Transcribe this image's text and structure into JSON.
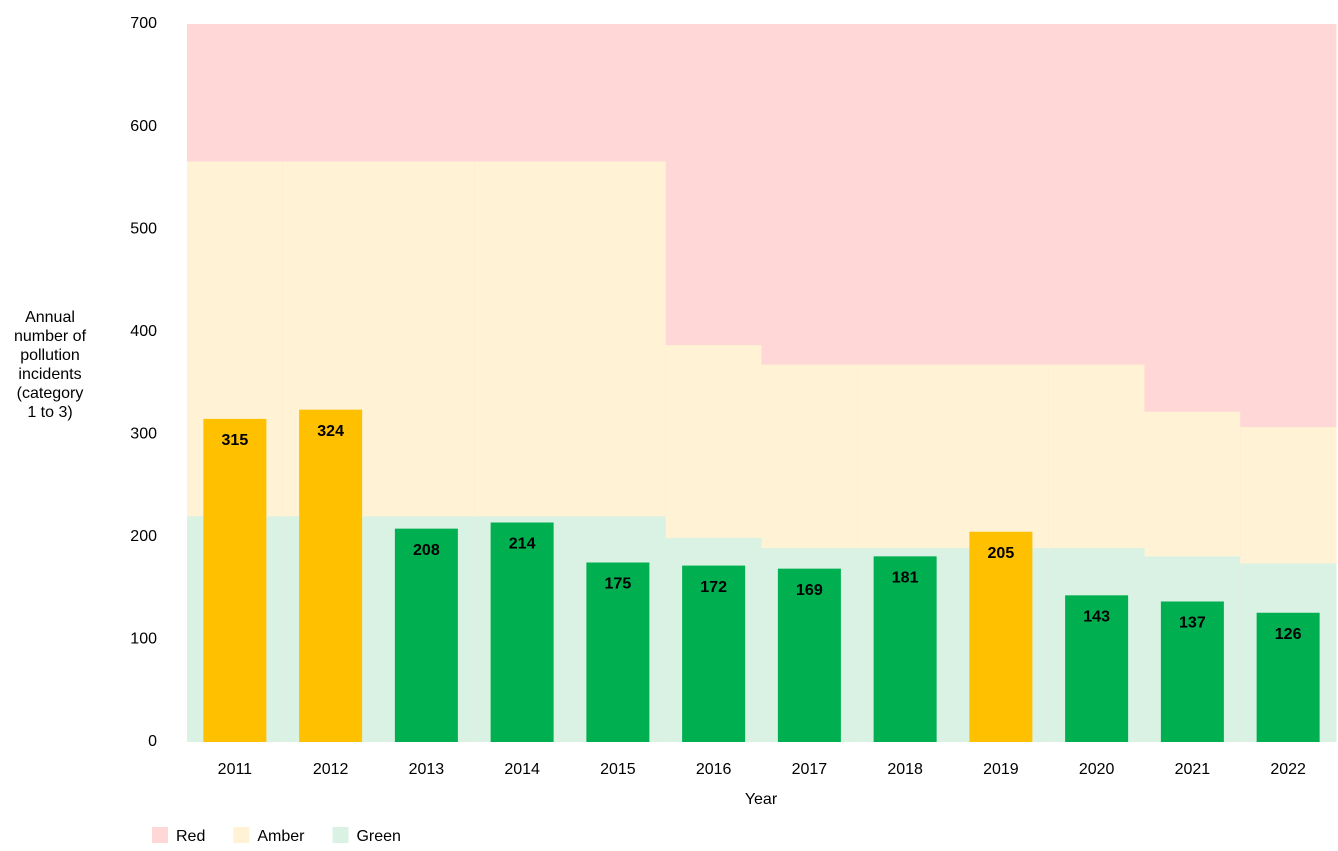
{
  "chart_data": {
    "type": "bar",
    "categories": [
      "2011",
      "2012",
      "2013",
      "2014",
      "2015",
      "2016",
      "2017",
      "2018",
      "2019",
      "2020",
      "2021",
      "2022"
    ],
    "values": [
      315,
      324,
      208,
      214,
      175,
      172,
      169,
      181,
      205,
      143,
      137,
      126
    ],
    "bar_colors": [
      "#ffc000",
      "#ffc000",
      "#00b050",
      "#00b050",
      "#00b050",
      "#00b050",
      "#00b050",
      "#00b050",
      "#ffc000",
      "#00b050",
      "#00b050",
      "#00b050"
    ],
    "bands": [
      {
        "name": "Red",
        "color": "#ffd7d7"
      },
      {
        "name": "Amber",
        "color": "#fff2d5",
        "values": [
          566,
          566,
          566,
          566,
          566,
          387,
          368,
          368,
          368,
          368,
          322,
          307
        ]
      },
      {
        "name": "Green",
        "color": "#daf2e4",
        "values": [
          220,
          220,
          220,
          220,
          220,
          199,
          189,
          189,
          189,
          189,
          181,
          174
        ]
      }
    ],
    "ylabel": "Annual number of pollution incidents (category 1 to 3)",
    "xlabel": "Year",
    "ylim": [
      0,
      700
    ],
    "yticks": [
      0,
      100,
      200,
      300,
      400,
      500,
      600,
      700
    ]
  }
}
